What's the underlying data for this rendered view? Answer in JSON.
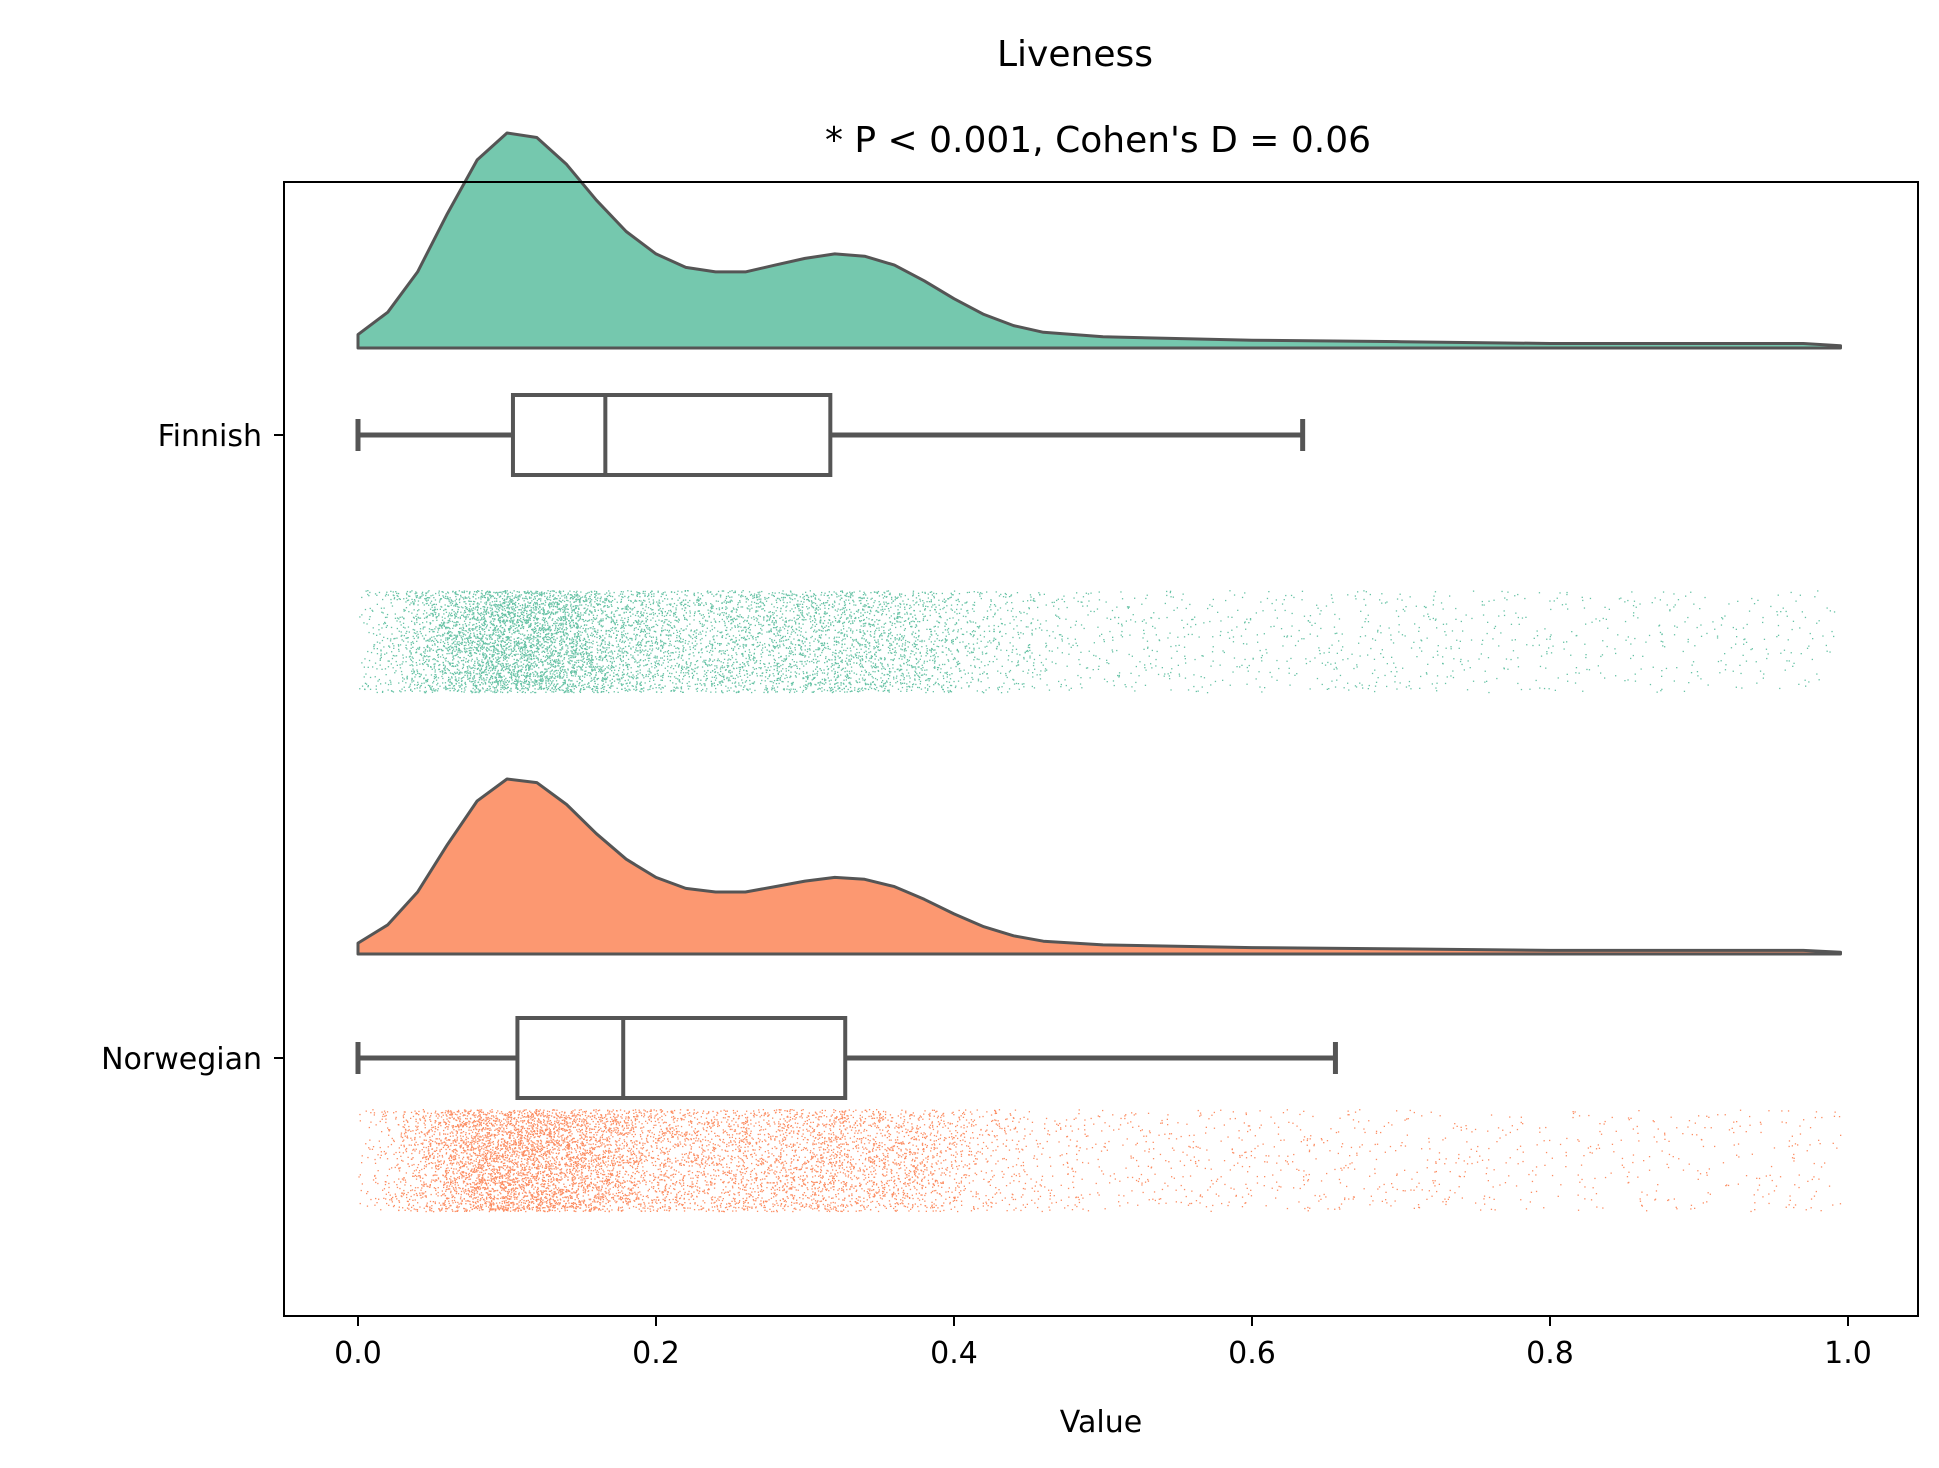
{
  "chart_data": {
    "type": "raincloud",
    "title": "Liveness",
    "subtitle": "* P < 0.001, Cohen's D = 0.06",
    "xlabel": "Value",
    "ylabel": "",
    "xlim": [
      -0.05,
      1.05
    ],
    "x_ticks": [
      0.0,
      0.2,
      0.4,
      0.6,
      0.8,
      1.0
    ],
    "x_tick_labels": [
      "0.0",
      "0.2",
      "0.4",
      "0.6",
      "0.8",
      "1.0"
    ],
    "grid": false,
    "categories": [
      "Finnish",
      "Norwegian"
    ],
    "series": [
      {
        "name": "Finnish",
        "color": "#66c2a5",
        "density": [
          [
            0.0,
            0.06
          ],
          [
            0.02,
            0.16
          ],
          [
            0.04,
            0.34
          ],
          [
            0.06,
            0.6
          ],
          [
            0.08,
            0.84
          ],
          [
            0.1,
            0.96
          ],
          [
            0.12,
            0.94
          ],
          [
            0.14,
            0.82
          ],
          [
            0.16,
            0.66
          ],
          [
            0.18,
            0.52
          ],
          [
            0.2,
            0.42
          ],
          [
            0.22,
            0.36
          ],
          [
            0.24,
            0.34
          ],
          [
            0.26,
            0.34
          ],
          [
            0.28,
            0.37
          ],
          [
            0.3,
            0.4
          ],
          [
            0.32,
            0.42
          ],
          [
            0.34,
            0.41
          ],
          [
            0.36,
            0.37
          ],
          [
            0.38,
            0.3
          ],
          [
            0.4,
            0.22
          ],
          [
            0.42,
            0.15
          ],
          [
            0.44,
            0.1
          ],
          [
            0.46,
            0.07
          ],
          [
            0.5,
            0.05
          ],
          [
            0.6,
            0.035
          ],
          [
            0.7,
            0.028
          ],
          [
            0.8,
            0.02
          ],
          [
            0.9,
            0.02
          ],
          [
            0.97,
            0.02
          ],
          [
            0.995,
            0.01
          ]
        ],
        "box": {
          "whisker_low": 0.0,
          "q1": 0.104,
          "median": 0.166,
          "q3": 0.317,
          "whisker_high": 0.634
        }
      },
      {
        "name": "Norwegian",
        "color": "#fc8d62",
        "density": [
          [
            0.0,
            0.06
          ],
          [
            0.02,
            0.16
          ],
          [
            0.04,
            0.34
          ],
          [
            0.06,
            0.6
          ],
          [
            0.08,
            0.84
          ],
          [
            0.1,
            0.96
          ],
          [
            0.12,
            0.94
          ],
          [
            0.14,
            0.82
          ],
          [
            0.16,
            0.66
          ],
          [
            0.18,
            0.52
          ],
          [
            0.2,
            0.42
          ],
          [
            0.22,
            0.36
          ],
          [
            0.24,
            0.34
          ],
          [
            0.26,
            0.34
          ],
          [
            0.28,
            0.37
          ],
          [
            0.3,
            0.4
          ],
          [
            0.32,
            0.42
          ],
          [
            0.34,
            0.41
          ],
          [
            0.36,
            0.37
          ],
          [
            0.38,
            0.3
          ],
          [
            0.4,
            0.22
          ],
          [
            0.42,
            0.15
          ],
          [
            0.44,
            0.1
          ],
          [
            0.46,
            0.07
          ],
          [
            0.5,
            0.05
          ],
          [
            0.6,
            0.035
          ],
          [
            0.7,
            0.028
          ],
          [
            0.8,
            0.02
          ],
          [
            0.9,
            0.02
          ],
          [
            0.97,
            0.02
          ],
          [
            0.995,
            0.01
          ]
        ],
        "box": {
          "whisker_low": 0.0,
          "q1": 0.107,
          "median": 0.178,
          "q3": 0.327,
          "whisker_high": 0.656
        }
      }
    ]
  }
}
